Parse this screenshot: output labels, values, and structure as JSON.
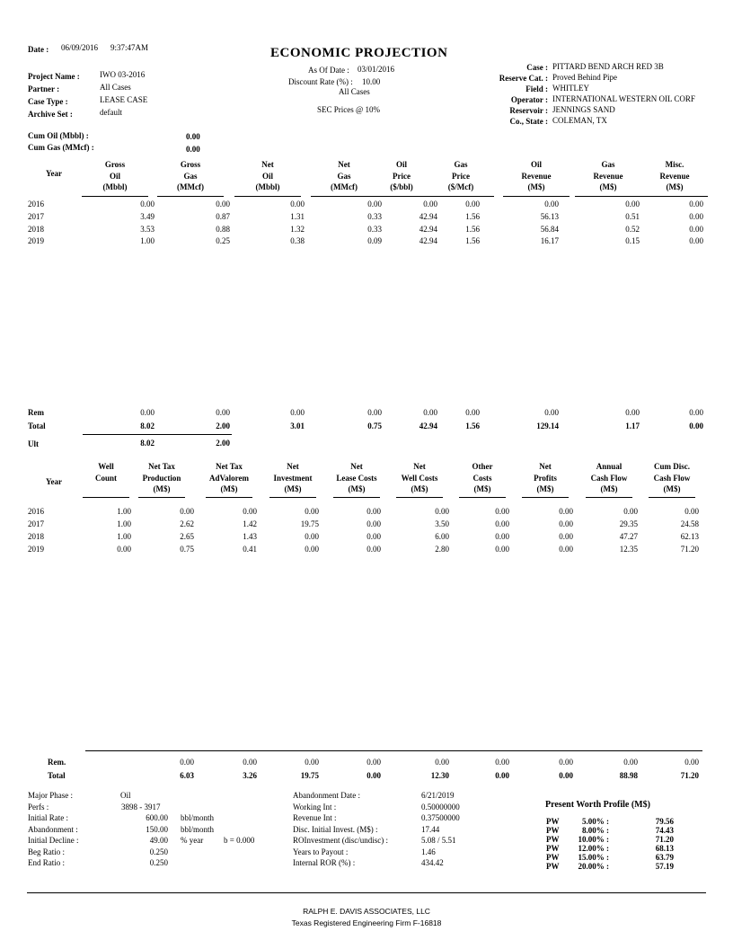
{
  "header": {
    "date_label": "Date :",
    "date": "06/09/2016",
    "time": "9:37:47AM",
    "title": "ECONOMIC PROJECTION",
    "as_of_label": "As Of Date :",
    "as_of": "03/01/2016",
    "discount_label": "Discount Rate (%) :",
    "discount": "10.00",
    "all_cases": "All Cases",
    "sec_prices": "SEC Prices @ 10%",
    "left_fields": [
      {
        "label": "Project Name :",
        "value": "IWO 03-2016"
      },
      {
        "label": "Partner :",
        "value": "All Cases"
      },
      {
        "label": "Case Type :",
        "value": "LEASE CASE"
      },
      {
        "label": "Archive Set :",
        "value": "default"
      }
    ],
    "right_fields": [
      {
        "label": "Case :",
        "value": "PITTARD BEND ARCH RED 3B"
      },
      {
        "label": "Reserve Cat. :",
        "value": "Proved Behind Pipe"
      },
      {
        "label": "Field :",
        "value": "WHITLEY"
      },
      {
        "label": "Operator :",
        "value": "INTERNATIONAL WESTERN OIL CORF"
      },
      {
        "label": "Reservoir :",
        "value": "JENNINGS SAND"
      },
      {
        "label": "Co., State :",
        "value": "COLEMAN, TX"
      }
    ],
    "cum_oil_label": "Cum Oil (Mbbl) :",
    "cum_oil": "0.00",
    "cum_gas_label": "Cum Gas (MMcf) :",
    "cum_gas": "0.00"
  },
  "table1": {
    "year_header": "Year",
    "columns": [
      [
        "Gross",
        "Oil",
        "(Mbbl)"
      ],
      [
        "Gross",
        "Gas",
        "(MMcf)"
      ],
      [
        "Net",
        "Oil",
        "(Mbbl)"
      ],
      [
        "Net",
        "Gas",
        "(MMcf)"
      ],
      [
        "Oil",
        "Price",
        "($/bbl)"
      ],
      [
        "Gas",
        "Price",
        "($/Mcf)"
      ],
      [
        "Oil",
        "Revenue",
        "(M$)"
      ],
      [
        "Gas",
        "Revenue",
        "(M$)"
      ],
      [
        "Misc.",
        "Revenue",
        "(M$)"
      ]
    ],
    "rows": [
      {
        "year": "2016",
        "values": [
          "0.00",
          "0.00",
          "0.00",
          "0.00",
          "0.00",
          "0.00",
          "0.00",
          "0.00",
          "0.00"
        ]
      },
      {
        "year": "2017",
        "values": [
          "3.49",
          "0.87",
          "1.31",
          "0.33",
          "42.94",
          "1.56",
          "56.13",
          "0.51",
          "0.00"
        ]
      },
      {
        "year": "2018",
        "values": [
          "3.53",
          "0.88",
          "1.32",
          "0.33",
          "42.94",
          "1.56",
          "56.84",
          "0.52",
          "0.00"
        ]
      },
      {
        "year": "2019",
        "values": [
          "1.00",
          "0.25",
          "0.38",
          "0.09",
          "42.94",
          "1.56",
          "16.17",
          "0.15",
          "0.00"
        ]
      }
    ],
    "rem": {
      "label": "Rem",
      "values": [
        "0.00",
        "0.00",
        "0.00",
        "0.00",
        "0.00",
        "0.00",
        "0.00",
        "0.00",
        "0.00"
      ]
    },
    "total": {
      "label": "Total",
      "values": [
        "8.02",
        "2.00",
        "3.01",
        "0.75",
        "42.94",
        "1.56",
        "129.14",
        "1.17",
        "0.00"
      ]
    },
    "ult": {
      "label": "Ult",
      "values": [
        "8.02",
        "2.00"
      ]
    }
  },
  "table2": {
    "year_header": "Year",
    "columns": [
      [
        "Well",
        "Count",
        ""
      ],
      [
        "Net Tax",
        "Production",
        "(M$)"
      ],
      [
        "Net Tax",
        "AdValorem",
        "(M$)"
      ],
      [
        "Net",
        "Investment",
        "(M$)"
      ],
      [
        "Net",
        "Lease Costs",
        "(M$)"
      ],
      [
        "Net",
        "Well Costs",
        "(M$)"
      ],
      [
        "Other",
        "Costs",
        "(M$)"
      ],
      [
        "Net",
        "Profits",
        "(M$)"
      ],
      [
        "Annual",
        "Cash Flow",
        "(M$)"
      ],
      [
        "Cum Disc.",
        "Cash Flow",
        "(M$)"
      ]
    ],
    "rows": [
      {
        "year": "2016",
        "values": [
          "1.00",
          "0.00",
          "0.00",
          "0.00",
          "0.00",
          "0.00",
          "0.00",
          "0.00",
          "0.00",
          "0.00"
        ]
      },
      {
        "year": "2017",
        "values": [
          "1.00",
          "2.62",
          "1.42",
          "19.75",
          "0.00",
          "3.50",
          "0.00",
          "0.00",
          "29.35",
          "24.58"
        ]
      },
      {
        "year": "2018",
        "values": [
          "1.00",
          "2.65",
          "1.43",
          "0.00",
          "0.00",
          "6.00",
          "0.00",
          "0.00",
          "47.27",
          "62.13"
        ]
      },
      {
        "year": "2019",
        "values": [
          "0.00",
          "0.75",
          "0.41",
          "0.00",
          "0.00",
          "2.80",
          "0.00",
          "0.00",
          "12.35",
          "71.20"
        ]
      }
    ],
    "rem": {
      "label": "Rem.",
      "values": [
        "0.00",
        "0.00",
        "0.00",
        "0.00",
        "0.00",
        "0.00",
        "0.00",
        "0.00",
        "0.00"
      ]
    },
    "total": {
      "label": "Total",
      "values": [
        "6.03",
        "3.26",
        "19.75",
        "0.00",
        "12.30",
        "0.00",
        "0.00",
        "88.98",
        "71.20"
      ]
    }
  },
  "summary_left": [
    {
      "label": "Major Phase :",
      "value": "Oil",
      "unit": "",
      "extra": ""
    },
    {
      "label": "Perfs :",
      "value": "3898 - 3917",
      "unit": "",
      "extra": ""
    },
    {
      "label": "Initial Rate :",
      "value": "600.00",
      "unit": "bbl/month",
      "extra": ""
    },
    {
      "label": "Abandonment :",
      "value": "150.00",
      "unit": "bbl/month",
      "extra": ""
    },
    {
      "label": "Initial Decline :",
      "value": "49.00",
      "unit": "% year",
      "extra": "b = 0.000"
    },
    {
      "label": "Beg Ratio :",
      "value": "0.250",
      "unit": "",
      "extra": ""
    },
    {
      "label": "End Ratio :",
      "value": "0.250",
      "unit": "",
      "extra": ""
    }
  ],
  "summary_mid": [
    {
      "label": "Abandonment Date :",
      "value": "6/21/2019"
    },
    {
      "label": "Working Int :",
      "value": "0.50000000"
    },
    {
      "label": "Revenue Int :",
      "value": "0.37500000"
    },
    {
      "label": "Disc. Initial Invest. (M$) :",
      "value": "17.44"
    },
    {
      "label": "ROInvestment (disc/undisc) :",
      "value": "5.08  / 5.51"
    },
    {
      "label": "Years to Payout :",
      "value": "1.46"
    },
    {
      "label": "Internal ROR (%) :",
      "value": "434.42"
    }
  ],
  "pw_profile": {
    "title": "Present Worth Profile (M$)",
    "rows": [
      {
        "pw": "PW",
        "rate": "5.00% :",
        "value": "79.56"
      },
      {
        "pw": "PW",
        "rate": "8.00% :",
        "value": "74.43"
      },
      {
        "pw": "PW",
        "rate": "10.00% :",
        "value": "71.20"
      },
      {
        "pw": "PW",
        "rate": "12.00% :",
        "value": "68.13"
      },
      {
        "pw": "PW",
        "rate": "15.00% :",
        "value": "63.79"
      },
      {
        "pw": "PW",
        "rate": "20.00% :",
        "value": "57.19"
      }
    ]
  },
  "footer": {
    "line1": "RALPH E. DAVIS ASSOCIATES, LLC",
    "line2": "Texas Registered Engineering Firm F-16818"
  }
}
